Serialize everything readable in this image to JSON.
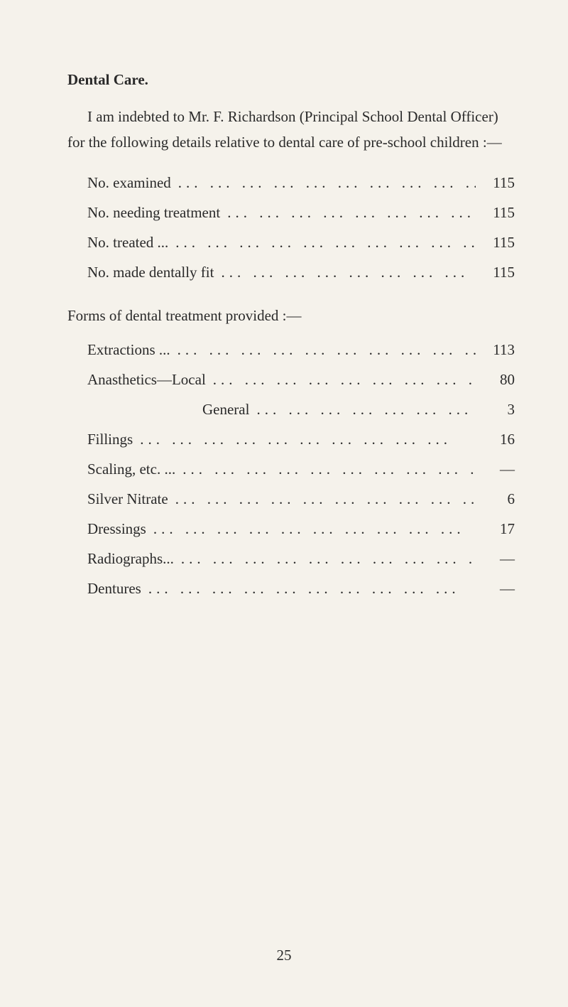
{
  "heading": "Dental Care.",
  "intro": "I am indebted to Mr. F. Richardson (Principal School Dental Officer) for the following details relative to dental care of pre-school children :—",
  "section1": {
    "items": [
      {
        "label": "No. examined",
        "value": "115",
        "indent": false
      },
      {
        "label": "No. needing treatment",
        "value": "115",
        "indent": false
      },
      {
        "label": "No. treated ...",
        "value": "115",
        "indent": false
      },
      {
        "label": "No. made dentally fit",
        "value": "115",
        "indent": false
      }
    ]
  },
  "section2": {
    "heading": "Forms of dental treatment provided :—",
    "items": [
      {
        "label": "Extractions ...",
        "value": "113",
        "indent": false
      },
      {
        "label": "Anasthetics—Local",
        "value": "80",
        "indent": false
      },
      {
        "label": "General",
        "value": "3",
        "indent": true
      },
      {
        "label": "Fillings",
        "value": "16",
        "indent": false
      },
      {
        "label": "Scaling, etc. ...",
        "value": "—",
        "indent": false
      },
      {
        "label": "Silver Nitrate",
        "value": "6",
        "indent": false
      },
      {
        "label": "Dressings",
        "value": "17",
        "indent": false
      },
      {
        "label": "Radiographs...",
        "value": "—",
        "indent": false
      },
      {
        "label": "Dentures",
        "value": "—",
        "indent": false
      }
    ]
  },
  "dots_fill": "...   ...   ...   ...   ...   ...   ...   ...   ...   ...",
  "page_number": "25"
}
